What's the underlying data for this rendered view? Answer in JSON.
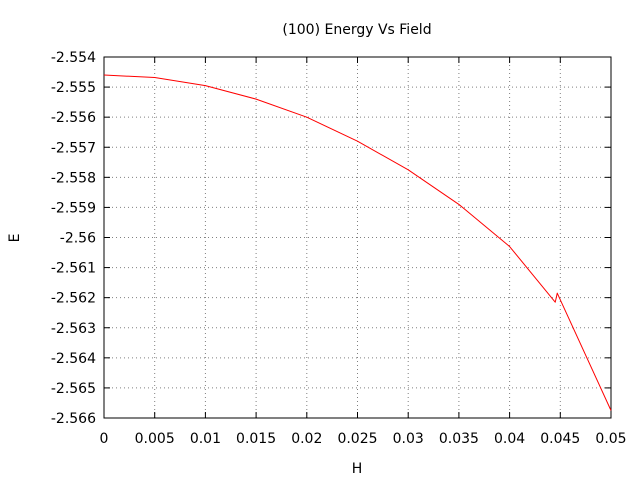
{
  "chart_data": {
    "type": "line",
    "title": "(100) Energy Vs Field",
    "xlabel": "H",
    "ylabel": "E",
    "xlim": [
      0,
      0.05
    ],
    "ylim": [
      -2.566,
      -2.554
    ],
    "x_ticks": [
      "0",
      "0.005",
      "0.01",
      "0.015",
      "0.02",
      "0.025",
      "0.03",
      "0.035",
      "0.04",
      "0.045",
      "0.05"
    ],
    "y_ticks": [
      "-2.554",
      "-2.555",
      "-2.556",
      "-2.557",
      "-2.558",
      "-2.559",
      "-2.56",
      "-2.561",
      "-2.562",
      "-2.563",
      "-2.564",
      "-2.565",
      "-2.566"
    ],
    "grid": true,
    "series": [
      {
        "color": "#ff0000",
        "x": [
          0,
          0.005,
          0.01,
          0.015,
          0.02,
          0.025,
          0.03,
          0.035,
          0.04,
          0.0445,
          0.0447,
          0.05
        ],
        "y": [
          -2.5546,
          -2.55468,
          -2.55495,
          -2.5554,
          -2.556,
          -2.5568,
          -2.55775,
          -2.5589,
          -2.5603,
          -2.56215,
          -2.56185,
          -2.56575
        ]
      }
    ]
  }
}
